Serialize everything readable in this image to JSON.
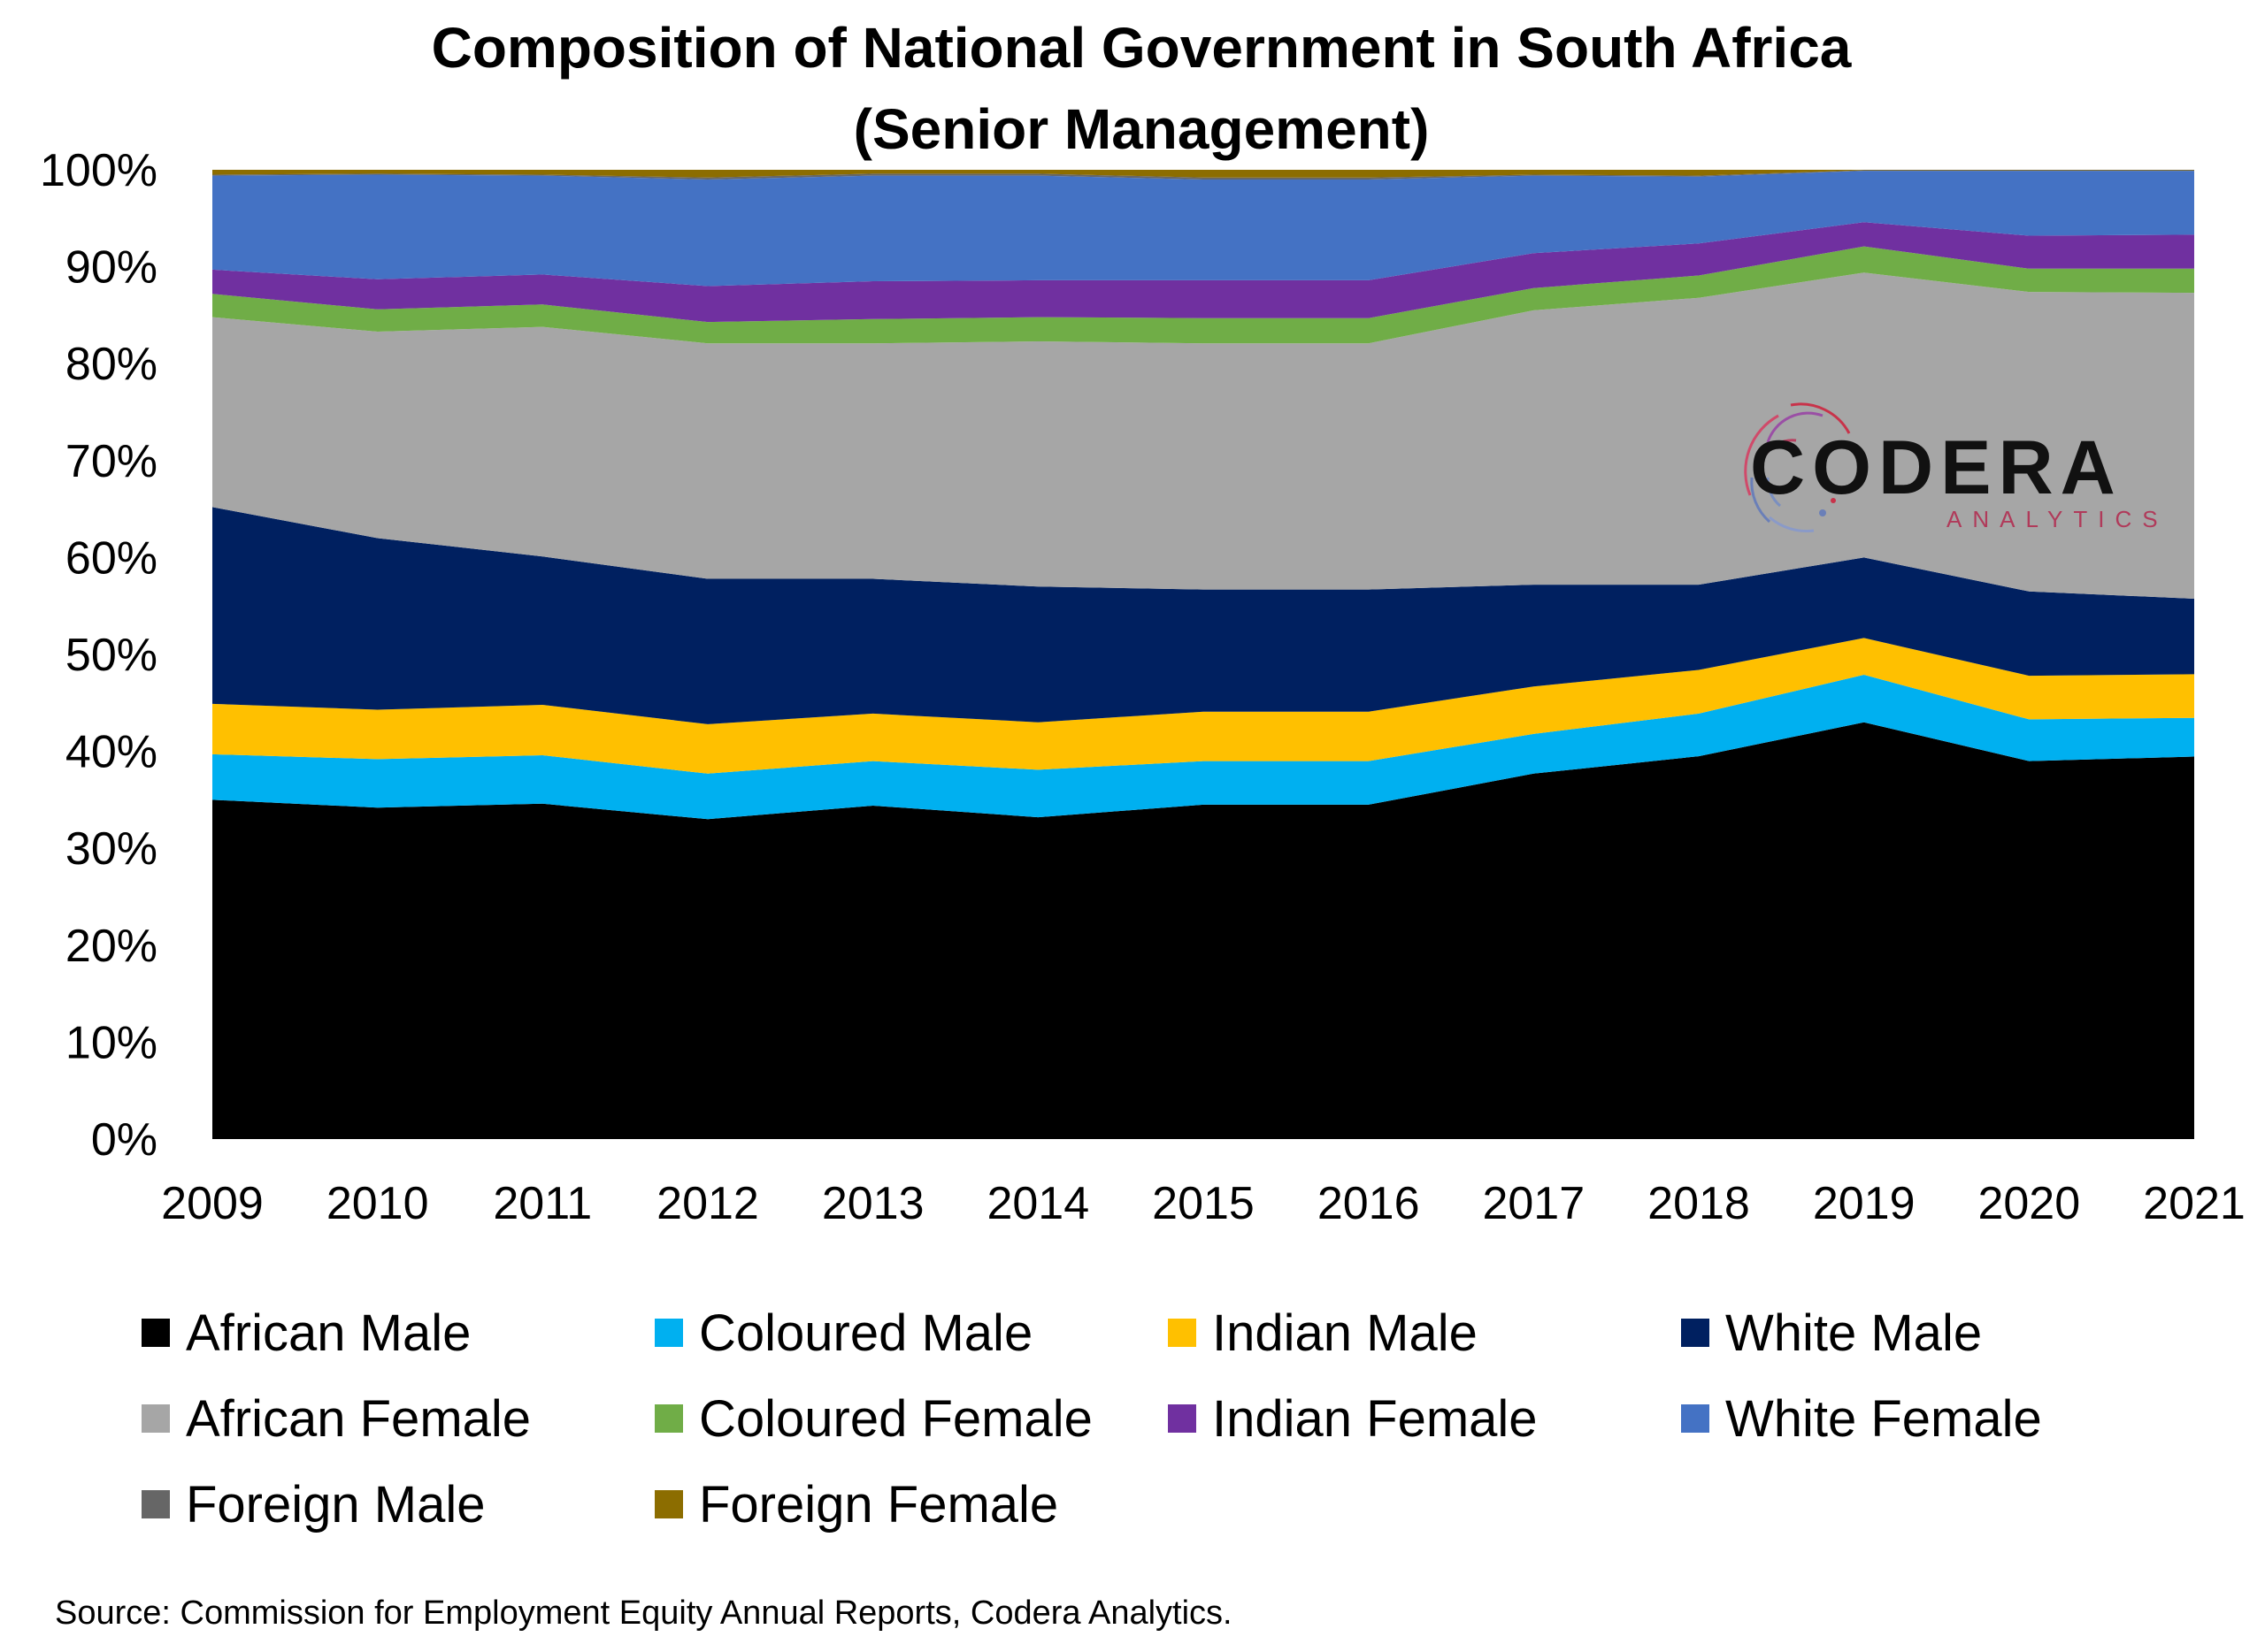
{
  "chart_data": {
    "type": "area",
    "stacked": true,
    "percent": true,
    "title": [
      "Composition of National Government in South Africa",
      "(Senior Management)"
    ],
    "x": [
      "2009",
      "2010",
      "2011",
      "2012",
      "2013",
      "2014",
      "2015",
      "2016",
      "2017",
      "2018",
      "2019",
      "2020",
      "2021"
    ],
    "ylim": [
      0,
      100
    ],
    "yticks": [
      "0%",
      "10%",
      "20%",
      "30%",
      "40%",
      "50%",
      "60%",
      "70%",
      "80%",
      "90%",
      "100%"
    ],
    "series": [
      {
        "name": "African Male",
        "color": "#000000",
        "values": [
          35,
          34.2,
          34.6,
          33,
          34.4,
          33.2,
          34.5,
          34.5,
          37.7,
          39.5,
          43,
          39,
          39.5
        ]
      },
      {
        "name": "Coloured Male",
        "color": "#00b0f0",
        "values": [
          4.7,
          5,
          5,
          4.7,
          4.6,
          4.9,
          4.5,
          4.5,
          4.1,
          4.4,
          4.9,
          4.3,
          4
        ]
      },
      {
        "name": "Indian Male",
        "color": "#ffc000",
        "values": [
          5.2,
          5.1,
          5.2,
          5.1,
          4.9,
          4.9,
          5.1,
          5.1,
          4.9,
          4.5,
          3.8,
          4.5,
          4.5
        ]
      },
      {
        "name": "White Male",
        "color": "#002060",
        "values": [
          20.3,
          17.7,
          15.3,
          15,
          13.9,
          14,
          12.6,
          12.6,
          10.5,
          8.8,
          8.3,
          8.7,
          7.8
        ]
      },
      {
        "name": "African Female",
        "color": "#a6a6a6",
        "values": [
          19.6,
          21.3,
          23.7,
          24.3,
          24.3,
          25.3,
          25.4,
          25.4,
          28.3,
          29.6,
          29.4,
          30.9,
          31.6
        ]
      },
      {
        "name": "Coloured Female",
        "color": "#70ad47",
        "values": [
          2.4,
          2.3,
          2.3,
          2.2,
          2.5,
          2.5,
          2.6,
          2.6,
          2.3,
          2.3,
          2.7,
          2.4,
          2.5
        ]
      },
      {
        "name": "Indian Female",
        "color": "#7030a0",
        "values": [
          2.5,
          3.1,
          3.1,
          3.7,
          3.9,
          3.8,
          3.9,
          3.9,
          3.6,
          3.3,
          2.5,
          3.4,
          3.5
        ]
      },
      {
        "name": "White Female",
        "color": "#4472c4",
        "values": [
          9.7,
          10.8,
          10.2,
          11,
          10.9,
          10.8,
          10.4,
          10.4,
          8,
          6.9,
          5.3,
          6.7,
          6.6
        ]
      },
      {
        "name": "Foreign Male",
        "color": "#666666",
        "values": [
          0.1,
          0.1,
          0.1,
          0.2,
          0.2,
          0.2,
          0.2,
          0.2,
          0.1,
          0.1,
          0.05,
          0.05,
          0.05
        ]
      },
      {
        "name": "Foreign Female",
        "color": "#8c6d00",
        "values": [
          0.5,
          0.4,
          0.5,
          0.8,
          0.4,
          0.4,
          0.8,
          0.8,
          0.5,
          0.6,
          0.05,
          0.05,
          0.05
        ]
      }
    ],
    "legend": {
      "position": "bottom",
      "columns": 4
    },
    "grid": false
  },
  "source": "Source: Commission for Employment Equity Annual Reports, Codera Analytics.",
  "logo": {
    "name": "CODERA",
    "tagline": "ANALYTICS"
  }
}
